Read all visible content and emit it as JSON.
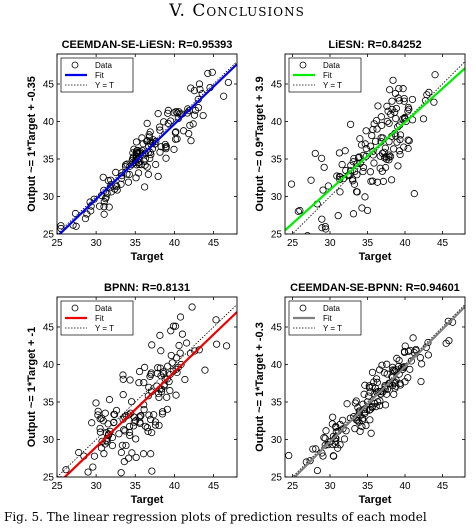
{
  "section_heading": {
    "number": "V.",
    "title": "Conclusions"
  },
  "caption": "Fig. 5.   The linear regression plots of prediction results of each model",
  "legend_labels": {
    "data": "Data",
    "fit": "Fit",
    "identity": "Y = T"
  },
  "chart_data": [
    {
      "type": "scatter",
      "title": "CEEMDAN-SE-LiESN: R=0.95393",
      "xlabel": "Target",
      "ylabel": "Output ~= 1*Target + -0.35",
      "xlim": [
        25,
        48
      ],
      "ylim": [
        25,
        49
      ],
      "xticks": [
        25,
        30,
        35,
        40,
        45
      ],
      "yticks": [
        25,
        30,
        35,
        40,
        45
      ],
      "fit": {
        "slope": 1.0,
        "intercept": -0.35,
        "color": "#0000ee"
      },
      "n_points": 150,
      "spread": 1.6,
      "legend_position": "top-left"
    },
    {
      "type": "scatter",
      "title": "LiESN: R=0.84252",
      "xlabel": "Target",
      "ylabel": "Output ~= 0.9*Target + 3.9",
      "xlim": [
        24,
        48
      ],
      "ylim": [
        25,
        49
      ],
      "xticks": [
        25,
        30,
        35,
        40,
        45
      ],
      "yticks": [
        25,
        30,
        35,
        40,
        45
      ],
      "fit": {
        "slope": 0.9,
        "intercept": 3.9,
        "color": "#00ee00"
      },
      "n_points": 150,
      "spread": 3.0,
      "legend_position": "top-left"
    },
    {
      "type": "scatter",
      "title": "BPNN: R=0.8131",
      "xlabel": "Target",
      "ylabel": "Output ~= 1*Target + -1",
      "xlim": [
        25,
        48
      ],
      "ylim": [
        25,
        49
      ],
      "xticks": [
        25,
        30,
        35,
        40,
        45
      ],
      "yticks": [
        25,
        30,
        35,
        40,
        45
      ],
      "fit": {
        "slope": 1.0,
        "intercept": -1.0,
        "color": "#ee0000"
      },
      "n_points": 150,
      "spread": 3.2,
      "legend_position": "top-left"
    },
    {
      "type": "scatter",
      "title": "CEEMDAN-SE-BPNN: R=0.94601",
      "xlabel": "Target",
      "ylabel": "Output ~= 1*Target + -0.3",
      "xlim": [
        24,
        48
      ],
      "ylim": [
        25,
        49
      ],
      "xticks": [
        25,
        30,
        35,
        40,
        45
      ],
      "yticks": [
        25,
        30,
        35,
        40,
        45
      ],
      "fit": {
        "slope": 1.0,
        "intercept": -0.3,
        "color": "#808080"
      },
      "n_points": 150,
      "spread": 1.7,
      "legend_position": "top-left"
    }
  ]
}
